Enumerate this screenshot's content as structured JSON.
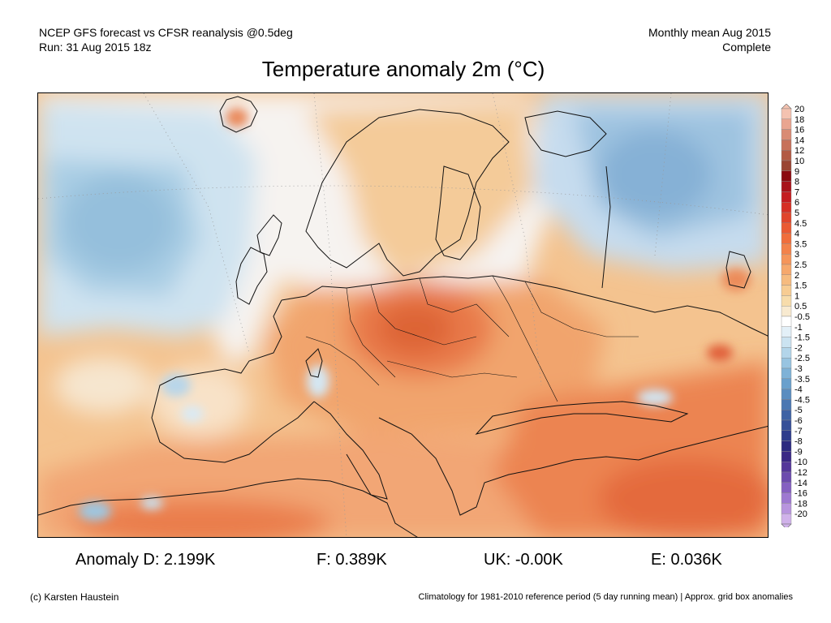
{
  "header": {
    "left_line1": "NCEP GFS forecast vs CFSR reanalysis @0.5deg",
    "left_line2": "Run: 31 Aug 2015 18z",
    "right_line1": "Monthly mean Aug 2015",
    "right_line2": "Complete"
  },
  "title": "Temperature anomaly 2m (°C)",
  "colorbar": {
    "labels": [
      "20",
      "18",
      "16",
      "14",
      "12",
      "10",
      "9",
      "8",
      "7",
      "6",
      "5",
      "4.5",
      "4",
      "3.5",
      "3",
      "2.5",
      "2",
      "1.5",
      "1",
      "0.5",
      "-0.5",
      "-1",
      "-1.5",
      "-2",
      "-2.5",
      "-3",
      "-3.5",
      "-4",
      "-4.5",
      "-5",
      "-6",
      "-7",
      "-8",
      "-9",
      "-10",
      "-12",
      "-14",
      "-16",
      "-18",
      "-20"
    ],
    "colors": [
      "#f4c2b0",
      "#e9a590",
      "#d98b74",
      "#c7715a",
      "#b25a44",
      "#9a4534",
      "#8b0a10",
      "#a8121a",
      "#c41c20",
      "#d62f24",
      "#e0452c",
      "#ea5a33",
      "#f06e3c",
      "#f3824a",
      "#f5955a",
      "#f6a86c",
      "#f6bb7f",
      "#f7cc93",
      "#f7dcab",
      "#f8ead0",
      "#ffffff",
      "#e3f0f8",
      "#cbe3f1",
      "#b3d5ea",
      "#98c4e1",
      "#7fb2d7",
      "#6aa0cc",
      "#5a8dc0",
      "#4b78b2",
      "#3f63a4",
      "#364f98",
      "#2e3c8c",
      "#2c2a80",
      "#3a2785",
      "#54369a",
      "#6c4bae",
      "#8560c1",
      "#9e79d1",
      "#b895de",
      "#d0b2ea"
    ]
  },
  "anomalies": {
    "d": "Anomaly D: 2.199K",
    "f": "F: 0.389K",
    "uk": "UK: -0.00K",
    "e": "E: 0.036K"
  },
  "footer": {
    "credit": "(c) Karsten Haustein",
    "climatology": "Climatology for 1981-2010 reference period (5 day running mean) | Approx. grid box anomalies"
  }
}
